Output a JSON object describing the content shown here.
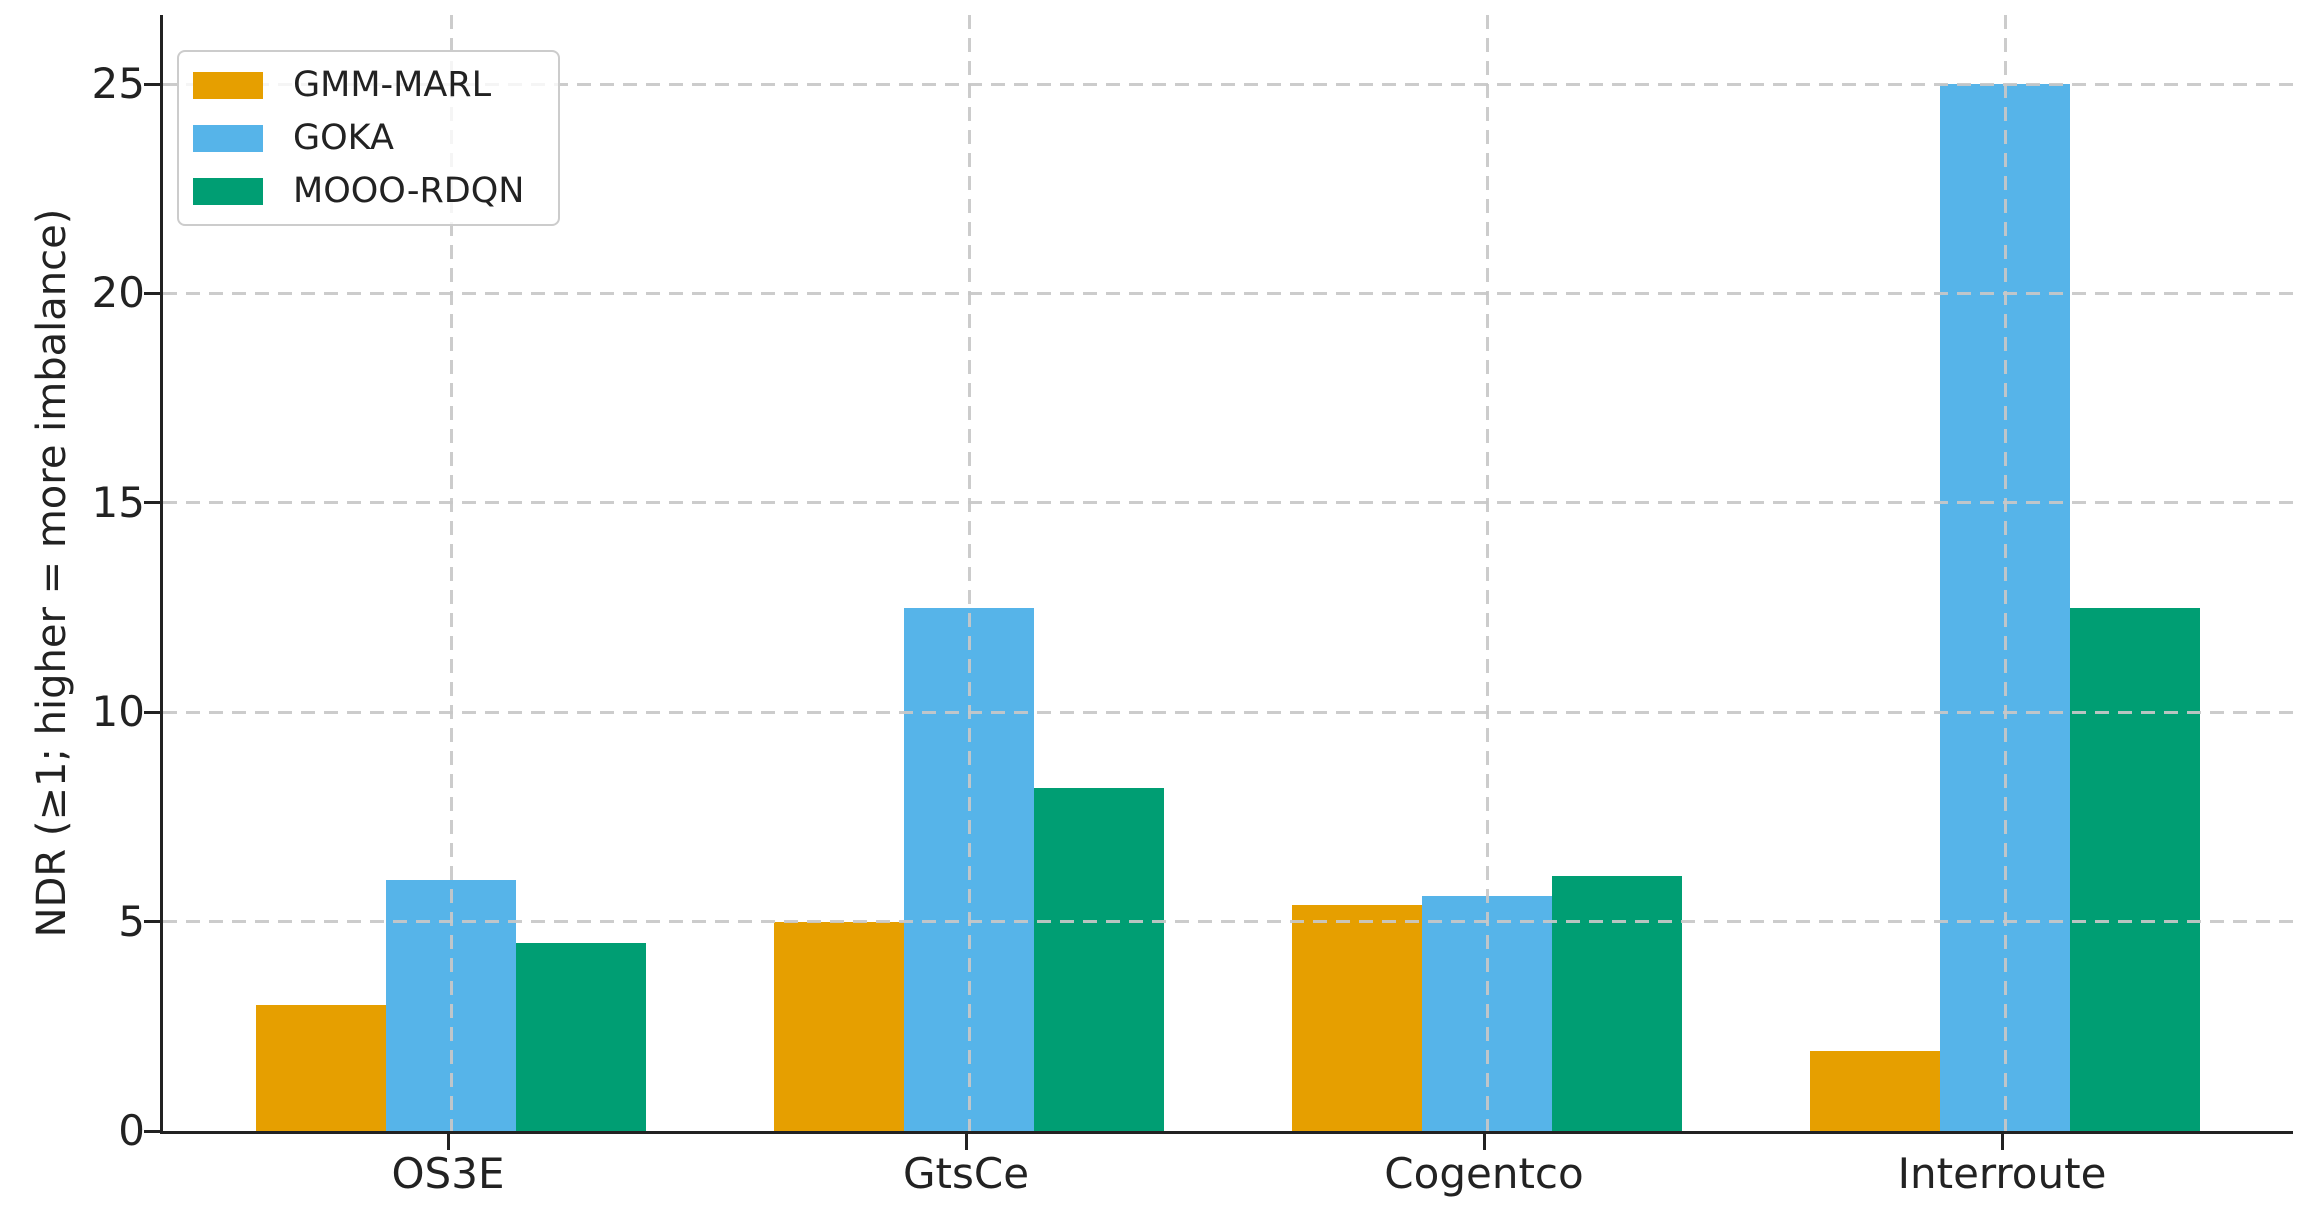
{
  "chart_data": {
    "type": "bar",
    "title": "",
    "xlabel": "",
    "ylabel": "NDR (≥1; higher = more imbalance)",
    "categories": [
      "OS3E",
      "GtsCe",
      "Cogentco",
      "Interroute"
    ],
    "series": [
      {
        "name": "GMM-MARL",
        "color": "#E69F00",
        "values": [
          3.0,
          5.0,
          5.4,
          1.9
        ]
      },
      {
        "name": "GOKA",
        "color": "#56B4E9",
        "values": [
          6.0,
          12.5,
          5.6,
          25.0
        ]
      },
      {
        "name": "MOOO-RDQN",
        "color": "#009E73",
        "values": [
          4.5,
          8.2,
          6.1,
          12.5
        ]
      }
    ],
    "ylim": [
      0,
      26.65
    ],
    "yticks": [
      0,
      5,
      10,
      15,
      20,
      25
    ],
    "grid": true,
    "grid_style": "dashed",
    "grid_above_bars": true,
    "legend_position": "upper left",
    "colors": {
      "grid": "#c8c8c8",
      "axis": "#222222",
      "text": "#222222",
      "background": "#ffffff"
    }
  }
}
